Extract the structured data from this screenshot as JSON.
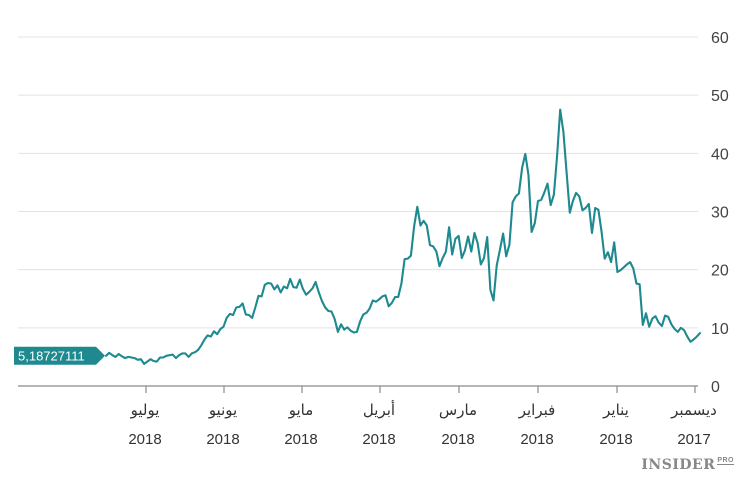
{
  "chart_data": {
    "type": "line",
    "title": "",
    "xlabel": "",
    "ylabel": "",
    "ylim": [
      0,
      60
    ],
    "yticks": [
      0,
      10,
      20,
      30,
      40,
      50,
      60
    ],
    "grid": true,
    "line_color": "#1e8a8f",
    "last_value_label": "5,18727111",
    "x_axis_order": "newest-left",
    "x_ticks": [
      {
        "month": "يوليو",
        "year": "2018"
      },
      {
        "month": "يونيو",
        "year": "2018"
      },
      {
        "month": "مايو",
        "year": "2018"
      },
      {
        "month": "أبريل",
        "year": "2018"
      },
      {
        "month": "مارس",
        "year": "2018"
      },
      {
        "month": "فبراير",
        "year": "2018"
      },
      {
        "month": "يناير",
        "year": "2018"
      },
      {
        "month": "ديسمبر",
        "year": "2017"
      }
    ],
    "series": [
      {
        "name": "value",
        "values_oldest_to_newest": [
          9.1,
          8.5,
          8.0,
          7.6,
          8.5,
          9.6,
          10.0,
          9.3,
          9.8,
          10.6,
          11.9,
          12.1,
          10.3,
          10.9,
          12.0,
          11.6,
          10.2,
          12.5,
          10.5,
          17.5,
          17.6,
          20.2,
          21.3,
          20.9,
          20.4,
          19.9,
          19.6,
          24.7,
          21.3,
          23.0,
          21.9,
          26.6,
          30.3,
          30.6,
          26.3,
          31.3,
          30.6,
          30.2,
          32.6,
          33.2,
          31.8,
          29.8,
          36.7,
          43.7,
          47.5,
          39.6,
          32.9,
          31.1,
          34.8,
          33.3,
          32.0,
          31.8,
          28.0,
          26.5,
          36.2,
          39.9,
          37.5,
          33.1,
          32.6,
          31.6,
          24.3,
          22.3,
          26.2,
          23.4,
          20.7,
          14.7,
          16.5,
          25.6,
          22.0,
          20.9,
          24.6,
          26.3,
          23.1,
          25.7,
          23.3,
          22.0,
          25.8,
          25.3,
          22.6,
          27.3,
          23.1,
          22.0,
          20.6,
          23.1,
          24.0,
          24.2,
          27.6,
          28.4,
          27.6,
          30.8,
          27.4,
          22.4,
          21.9,
          21.8,
          17.6,
          15.3,
          15.3,
          14.3,
          13.7,
          15.6,
          15.4,
          14.9,
          14.5,
          14.7,
          13.3,
          12.6,
          12.3,
          11.1,
          9.3,
          9.2,
          9.5,
          10.1,
          9.7,
          10.6,
          9.3,
          11.5,
          12.8,
          12.9,
          13.5,
          14.6,
          16.1,
          17.9,
          16.8,
          16.2,
          15.7,
          16.7,
          18.3,
          16.9,
          17.0,
          18.4,
          16.8,
          17.1,
          16.1,
          17.3,
          16.6,
          17.6,
          17.7,
          17.4,
          15.4,
          15.5,
          13.5,
          11.7,
          12.2,
          12.3,
          14.2,
          13.6,
          13.5,
          12.2,
          12.4,
          11.7,
          10.2,
          9.8,
          8.9,
          9.4,
          8.5,
          8.7,
          8.0,
          7.0,
          6.2,
          5.8,
          5.6,
          5.0,
          5.6,
          5.6,
          5.3,
          4.8,
          5.4,
          5.3,
          5.2,
          4.9,
          4.9,
          4.2,
          4.3,
          4.6,
          4.2,
          3.8,
          4.6,
          4.5,
          4.8,
          4.9,
          5.0,
          4.8,
          5.1,
          5.5,
          5.0,
          5.3,
          5.7,
          5.19
        ]
      }
    ]
  },
  "branding": {
    "name": "INSIDER",
    "suffix": "PRO"
  }
}
